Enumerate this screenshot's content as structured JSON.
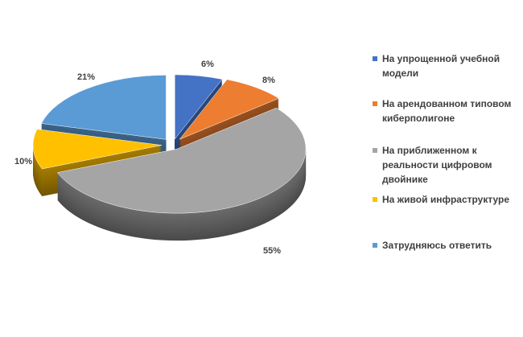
{
  "chart_data": {
    "type": "pie",
    "style": "3d-exploded",
    "title": "",
    "labels": [
      "На упрощенной учебной модели",
      "На арендованном типовом киберполигоне",
      "На приближенном к реальности цифровом двойнике",
      "На живой инфраструктуре",
      "Затрудняюсь ответить"
    ],
    "values": [
      6,
      8,
      55,
      10,
      21
    ],
    "data_labels": [
      "6%",
      "8%",
      "55%",
      "10%",
      "21%"
    ],
    "colors": [
      "#4472C4",
      "#ED7D31",
      "#A5A5A5",
      "#FFC000",
      "#5B9BD5"
    ],
    "legend_position": "right"
  }
}
